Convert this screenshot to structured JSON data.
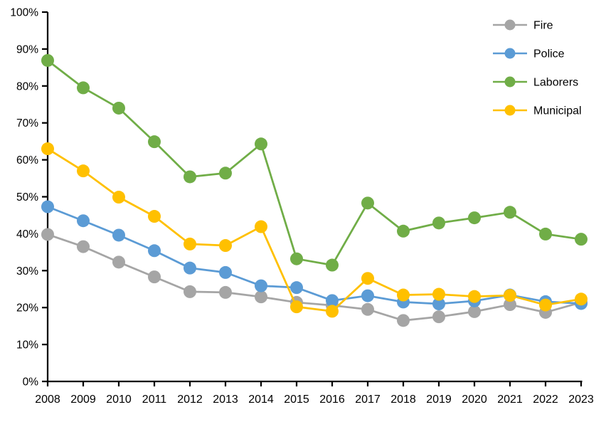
{
  "chart_data": {
    "type": "line",
    "title": "",
    "xlabel": "",
    "ylabel": "",
    "grid": false,
    "legend_position": "top-right",
    "background_color": "#ffffff",
    "axis_color": "#000000",
    "text_color": "#000000",
    "ylim": [
      0,
      100
    ],
    "y_tick_values": [
      0,
      10,
      20,
      30,
      40,
      50,
      60,
      70,
      80,
      90,
      100
    ],
    "y_tick_labels": [
      "0%",
      "10%",
      "20%",
      "30%",
      "40%",
      "50%",
      "60%",
      "70%",
      "80%",
      "90%",
      "100%"
    ],
    "categories": [
      "2008",
      "2009",
      "2010",
      "2011",
      "2012",
      "2013",
      "2014",
      "2015",
      "2016",
      "2017",
      "2018",
      "2019",
      "2020",
      "2021",
      "2022",
      "2023"
    ],
    "series": [
      {
        "name": "Fire",
        "color": "#A5A5A5",
        "values": [
          39.8,
          36.5,
          32.3,
          28.3,
          24.3,
          24.1,
          22.9,
          21.4,
          20.6,
          19.5,
          16.5,
          17.5,
          18.9,
          20.8,
          18.7,
          21.4
        ]
      },
      {
        "name": "Police",
        "color": "#5B9BD5",
        "values": [
          47.3,
          43.5,
          39.6,
          35.4,
          30.7,
          29.5,
          25.9,
          25.4,
          21.9,
          23.2,
          21.5,
          21.0,
          21.8,
          23.4,
          21.6,
          21.1
        ]
      },
      {
        "name": "Laborers",
        "color": "#70AD47",
        "values": [
          86.9,
          79.5,
          74.0,
          64.9,
          55.4,
          56.4,
          64.3,
          33.2,
          31.5,
          48.3,
          40.7,
          42.9,
          44.3,
          45.8,
          39.9,
          38.5
        ]
      },
      {
        "name": "Municipal",
        "color": "#FFC000",
        "values": [
          63.0,
          57.0,
          49.9,
          44.7,
          37.2,
          36.8,
          41.9,
          20.2,
          19.0,
          27.9,
          23.4,
          23.6,
          23.0,
          23.3,
          20.7,
          22.3
        ]
      }
    ]
  }
}
